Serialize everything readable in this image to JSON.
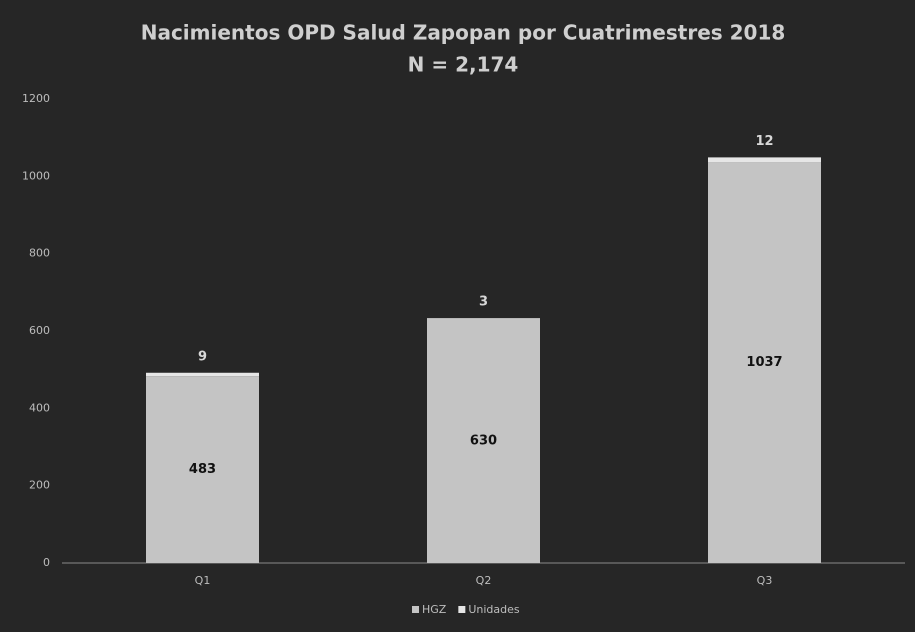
{
  "chart_data": {
    "type": "bar",
    "stacked": true,
    "title": "Nacimientos OPD Salud Zapopan por Cuatrimestres 2018",
    "subtitle": "N = 2,174",
    "categories": [
      "Q1",
      "Q2",
      "Q3"
    ],
    "series": [
      {
        "name": "HGZ",
        "color": "#c4c4c4",
        "values": [
          483,
          630,
          1037
        ]
      },
      {
        "name": "Unidades",
        "color": "#e6e6e6",
        "values": [
          9,
          3,
          12
        ]
      }
    ],
    "ylim": [
      0,
      1200
    ],
    "yticks": [
      0,
      200,
      400,
      600,
      800,
      1000,
      1200
    ],
    "legend": "bottom"
  }
}
